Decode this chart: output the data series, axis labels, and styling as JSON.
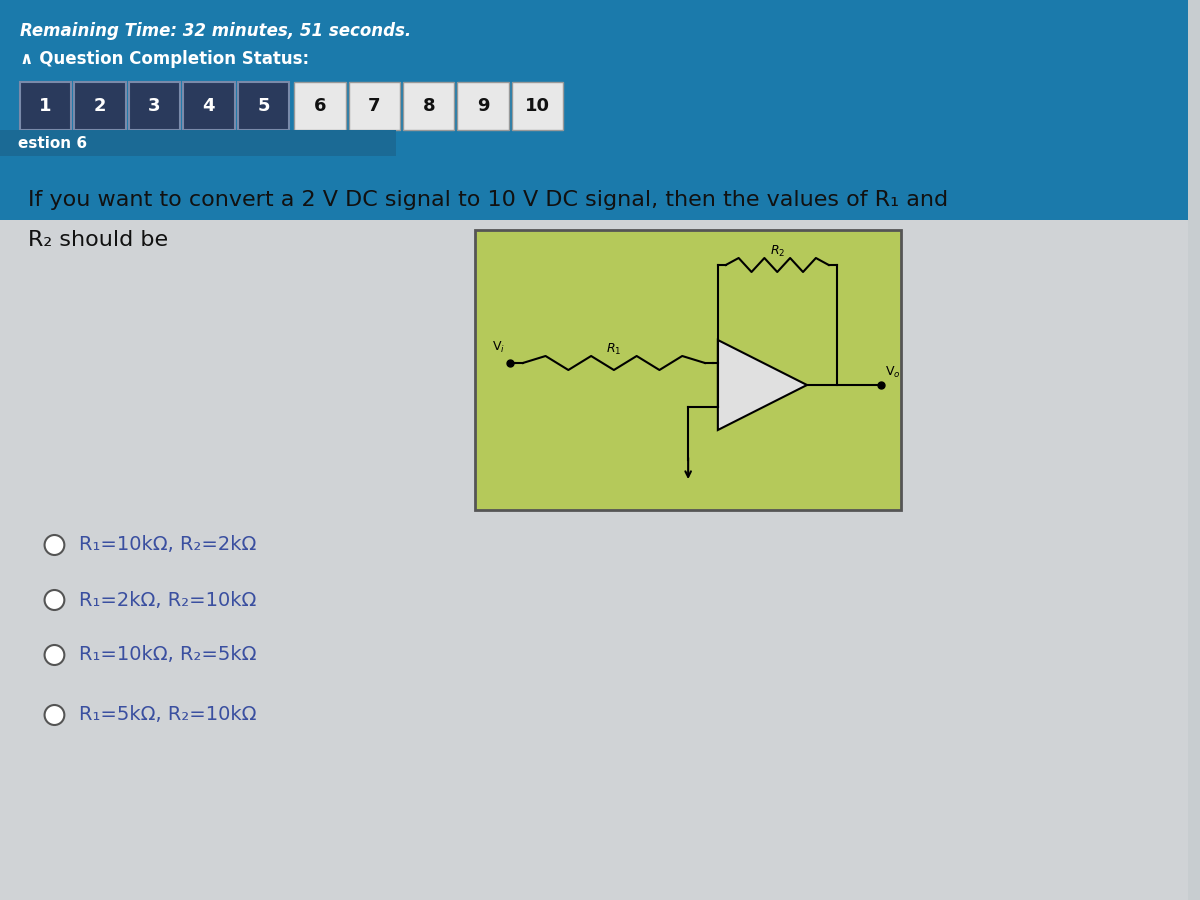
{
  "bg_color": "#c8cdd0",
  "header_bg": "#1b7aab",
  "header_text": "Remaining Time: 32 minutes, 51 seconds.",
  "completion_label": "∧ Question Completion Status:",
  "question_tabs_dark": [
    "1",
    "2",
    "3",
    "4",
    "5"
  ],
  "question_tabs_light": [
    "6",
    "7",
    "8",
    "9",
    "10"
  ],
  "question_label": "estion 6",
  "question_text_line1": "If you want to convert a 2 V DC signal to 10 V DC signal, then the values of R₁ and",
  "question_text_line2": "R₂ should be",
  "options": [
    "R₁=10kΩ, R₂=2kΩ",
    "R₁=2kΩ, R₂=10kΩ",
    "R₁=10kΩ, R₂=5kΩ",
    "R₁=5kΩ, R₂=10kΩ"
  ],
  "circuit_bg": "#b5c95a",
  "option_text_color": "#3a4fa0",
  "question_text_color": "#111111",
  "tab_dark_bg": "#2a3a5c",
  "tab_dark_text": "#ffffff",
  "tab_light_bg": "#e8e8e8",
  "tab_light_text": "#111111"
}
